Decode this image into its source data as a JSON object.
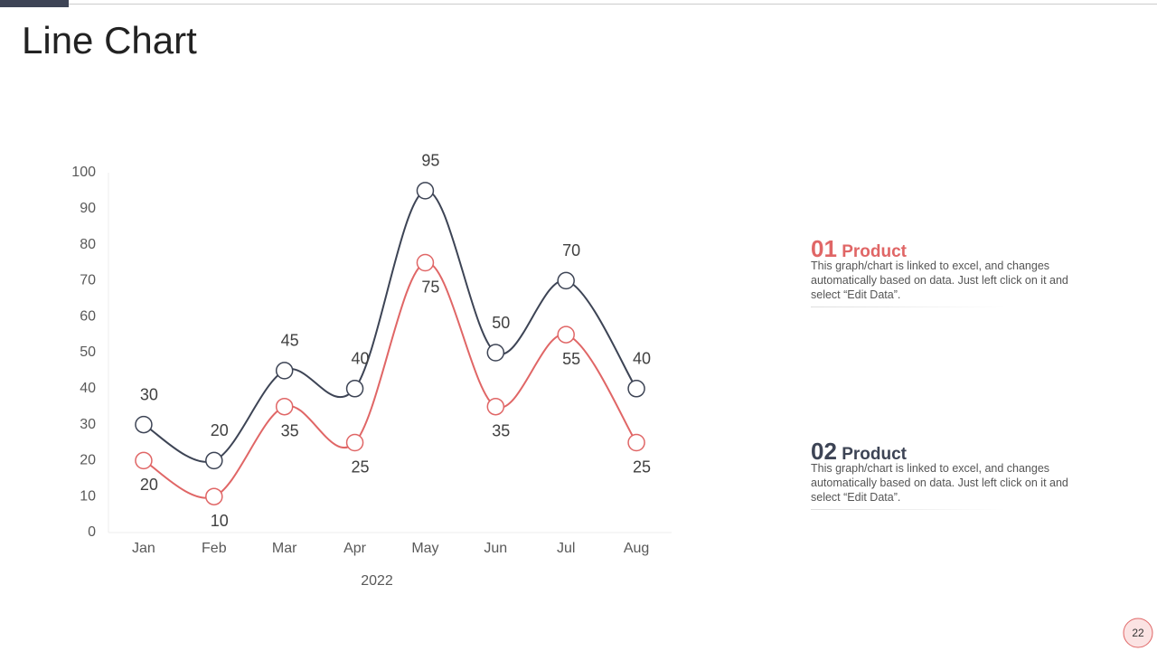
{
  "chart_data": {
    "type": "line",
    "title": "Line Chart",
    "xlabel": "2022",
    "categories": [
      "Jan",
      "Feb",
      "Mar",
      "Apr",
      "May",
      "Jun",
      "Jul",
      "Aug"
    ],
    "series": [
      {
        "number": "01",
        "name": "Product",
        "color": "#e06666",
        "values": [
          20,
          10,
          35,
          25,
          75,
          35,
          55,
          25
        ],
        "description": "This graph/chart is linked to excel, and changes automatically based on data. Just left click on it and select “Edit Data”."
      },
      {
        "number": "02",
        "name": "Product",
        "color": "#3d4455",
        "values": [
          30,
          20,
          45,
          40,
          95,
          50,
          70,
          40
        ],
        "description": "This graph/chart is linked to excel, and changes automatically based on data. Just left click on it and select “Edit Data”."
      }
    ],
    "ylim": [
      0,
      100
    ],
    "yticks": [
      0,
      10,
      20,
      30,
      40,
      50,
      60,
      70,
      80,
      90,
      100
    ]
  },
  "page_number": "22"
}
